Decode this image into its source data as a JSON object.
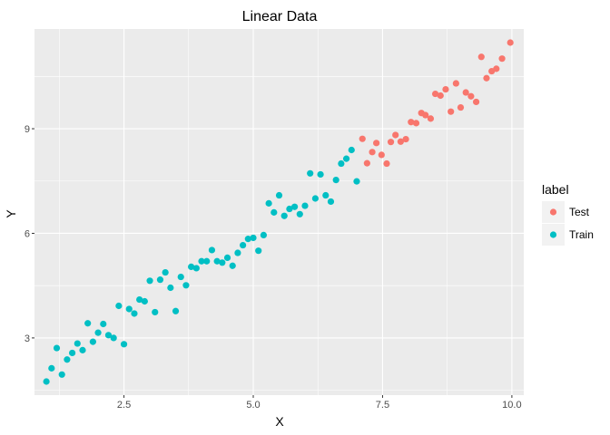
{
  "chart_data": {
    "type": "scatter",
    "title": "Linear Data",
    "xlabel": "X",
    "ylabel": "Y",
    "xlim": [
      0.77,
      10.23
    ],
    "ylim": [
      1.36,
      11.86
    ],
    "x_ticks": [
      2.5,
      5.0,
      7.5,
      10.0
    ],
    "x_tick_labels": [
      "2.5",
      "5.0",
      "7.5",
      "10.0"
    ],
    "y_ticks": [
      3,
      6,
      9
    ],
    "y_tick_labels": [
      "3",
      "6",
      "9"
    ],
    "grid": true,
    "legend": {
      "title": "label",
      "position": "right"
    },
    "colors": {
      "panel": "#EBEBEB",
      "grid": "#FFFFFF"
    },
    "series": [
      {
        "name": "Test",
        "color": "#F8766D",
        "points": [
          [
            7.11,
            8.71
          ],
          [
            7.2,
            8.01
          ],
          [
            7.3,
            8.33
          ],
          [
            7.38,
            8.59
          ],
          [
            7.48,
            8.25
          ],
          [
            7.58,
            8.0
          ],
          [
            7.66,
            8.62
          ],
          [
            7.75,
            8.82
          ],
          [
            7.85,
            8.63
          ],
          [
            7.95,
            8.7
          ],
          [
            8.05,
            9.19
          ],
          [
            8.15,
            9.16
          ],
          [
            8.25,
            9.45
          ],
          [
            8.33,
            9.39
          ],
          [
            8.43,
            9.29
          ],
          [
            8.52,
            10.0
          ],
          [
            8.62,
            9.95
          ],
          [
            8.72,
            10.13
          ],
          [
            8.82,
            9.49
          ],
          [
            8.92,
            10.3
          ],
          [
            9.01,
            9.61
          ],
          [
            9.11,
            10.04
          ],
          [
            9.21,
            9.93
          ],
          [
            9.31,
            9.77
          ],
          [
            9.41,
            11.06
          ],
          [
            9.51,
            10.45
          ],
          [
            9.61,
            10.65
          ],
          [
            9.7,
            10.72
          ],
          [
            9.81,
            11.01
          ],
          [
            9.97,
            11.47
          ]
        ]
      },
      {
        "name": "Train",
        "color": "#00BFC4",
        "points": [
          [
            1.0,
            1.75
          ],
          [
            1.1,
            2.13
          ],
          [
            1.2,
            2.71
          ],
          [
            1.3,
            1.95
          ],
          [
            1.4,
            2.38
          ],
          [
            1.5,
            2.57
          ],
          [
            1.6,
            2.84
          ],
          [
            1.7,
            2.65
          ],
          [
            1.8,
            3.42
          ],
          [
            1.9,
            2.89
          ],
          [
            2.0,
            3.15
          ],
          [
            2.1,
            3.4
          ],
          [
            2.2,
            3.08
          ],
          [
            2.3,
            3.0
          ],
          [
            2.4,
            3.92
          ],
          [
            2.5,
            2.82
          ],
          [
            2.6,
            3.83
          ],
          [
            2.7,
            3.7
          ],
          [
            2.8,
            4.1
          ],
          [
            2.9,
            4.05
          ],
          [
            3.0,
            4.64
          ],
          [
            3.1,
            3.74
          ],
          [
            3.2,
            4.67
          ],
          [
            3.3,
            4.88
          ],
          [
            3.4,
            4.44
          ],
          [
            3.5,
            3.77
          ],
          [
            3.6,
            4.75
          ],
          [
            3.7,
            4.51
          ],
          [
            3.8,
            5.04
          ],
          [
            3.9,
            5.0
          ],
          [
            4.0,
            5.2
          ],
          [
            4.1,
            5.2
          ],
          [
            4.2,
            5.52
          ],
          [
            4.3,
            5.2
          ],
          [
            4.4,
            5.16
          ],
          [
            4.5,
            5.3
          ],
          [
            4.6,
            5.07
          ],
          [
            4.7,
            5.44
          ],
          [
            4.8,
            5.66
          ],
          [
            4.9,
            5.84
          ],
          [
            5.0,
            5.87
          ],
          [
            5.1,
            5.5
          ],
          [
            5.2,
            5.95
          ],
          [
            5.3,
            6.86
          ],
          [
            5.4,
            6.6
          ],
          [
            5.5,
            7.09
          ],
          [
            5.6,
            6.5
          ],
          [
            5.7,
            6.7
          ],
          [
            5.8,
            6.76
          ],
          [
            5.9,
            6.55
          ],
          [
            6.0,
            6.79
          ],
          [
            6.1,
            7.72
          ],
          [
            6.2,
            7.0
          ],
          [
            6.3,
            7.69
          ],
          [
            6.4,
            7.09
          ],
          [
            6.5,
            6.91
          ],
          [
            6.6,
            7.53
          ],
          [
            6.7,
            8.0
          ],
          [
            6.8,
            8.14
          ],
          [
            6.9,
            8.39
          ],
          [
            7.0,
            7.49
          ]
        ]
      }
    ]
  }
}
